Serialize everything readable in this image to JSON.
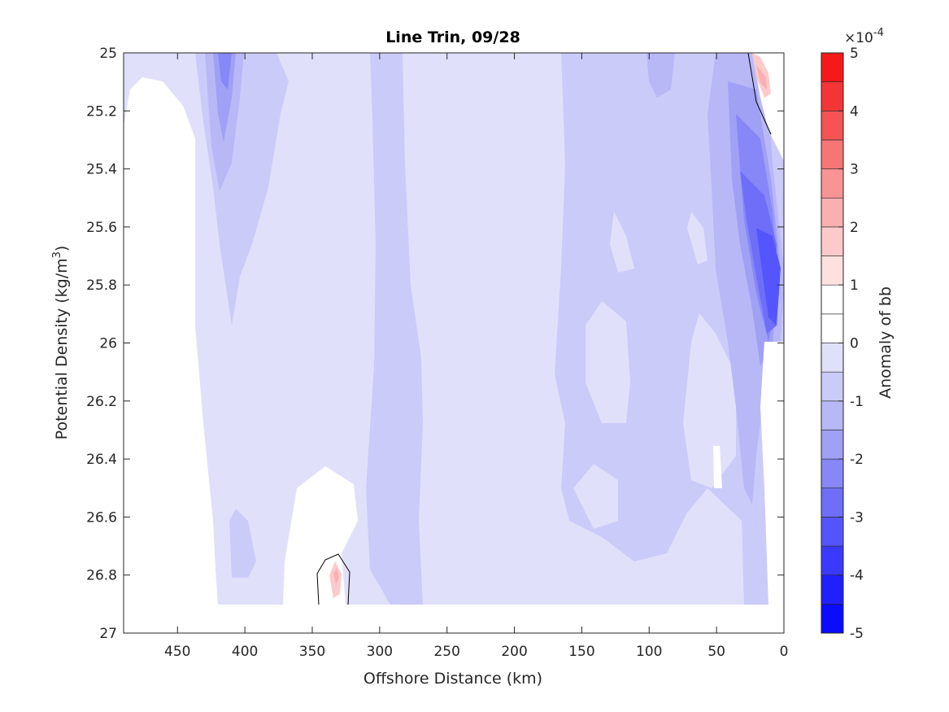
{
  "chart_data": {
    "type": "heatmap",
    "title": "Line Trin, 09/28",
    "xlabel": "Offshore Distance (km)",
    "ylabel_main": "Potential Density (kg/m",
    "ylabel_sup": "3",
    "ylabel_close": ")",
    "xlim": [
      490,
      0
    ],
    "ylim": [
      25,
      27
    ],
    "x_reversed": true,
    "y_reversed": true,
    "xticks": [
      450,
      400,
      350,
      300,
      250,
      200,
      150,
      100,
      50,
      0
    ],
    "yticks": [
      25,
      25.2,
      25.4,
      25.6,
      25.8,
      26,
      26.2,
      26.4,
      26.6,
      26.8,
      27
    ],
    "colorbar": {
      "label": "Anomaly of bb",
      "exponent_prefix": "×10",
      "exponent_power": "-4",
      "range": [
        -5,
        5
      ],
      "tick_values": [
        5,
        4,
        3,
        2,
        1,
        0,
        -1,
        -2,
        -3,
        -4,
        -5
      ],
      "levels": [
        -5,
        -4.5,
        -4,
        -3.5,
        -3,
        -2.5,
        -2,
        -1.5,
        -1,
        -0.5,
        0,
        0.5,
        1,
        1.5,
        2,
        2.5,
        3,
        3.5,
        4,
        4.5,
        5
      ],
      "colors_low_to_high": [
        "#0b0bff",
        "#2020ff",
        "#3a3aff",
        "#5555ff",
        "#6e6ef9",
        "#8787f7",
        "#a0a0f5",
        "#b8b8f7",
        "#cbcbf9",
        "#e0e0fb",
        "#ffffff",
        "#ffffff",
        "#fde0e0",
        "#fccaca",
        "#fab0b0",
        "#f89494",
        "#f67575",
        "#f45454",
        "#f43535",
        "#f51a1a"
      ]
    },
    "notes": "Filled contour of bb anomaly vs offshore distance and potential density; mostly light blue (-1 to 0) with darker blue bands near 420 km and near 10-30 km, white near 450-490 km and near 330-350 km deep, small red patches near 15 km top (~25.1) and ~333 km (~26.8)."
  }
}
